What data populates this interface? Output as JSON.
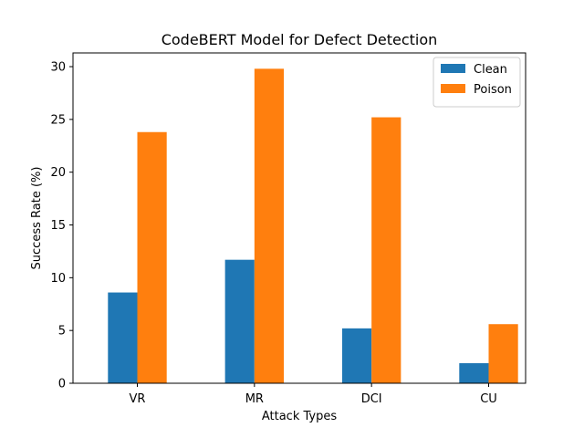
{
  "chart_data": {
    "type": "bar",
    "title": "CodeBERT Model for Defect Detection",
    "xlabel": "Attack Types",
    "ylabel": "Success Rate (%)",
    "categories": [
      "VR",
      "MR",
      "DCI",
      "CU"
    ],
    "series": [
      {
        "name": "Clean",
        "values": [
          8.6,
          11.7,
          5.2,
          1.9
        ],
        "color": "#1f77b4"
      },
      {
        "name": "Poison",
        "values": [
          23.8,
          29.8,
          25.2,
          5.6
        ],
        "color": "#ff7f0e"
      }
    ],
    "ylim": [
      0,
      31.3
    ],
    "yticks": [
      0,
      5,
      10,
      15,
      20,
      25,
      30
    ],
    "grid": false,
    "legend_position": "top-right"
  }
}
